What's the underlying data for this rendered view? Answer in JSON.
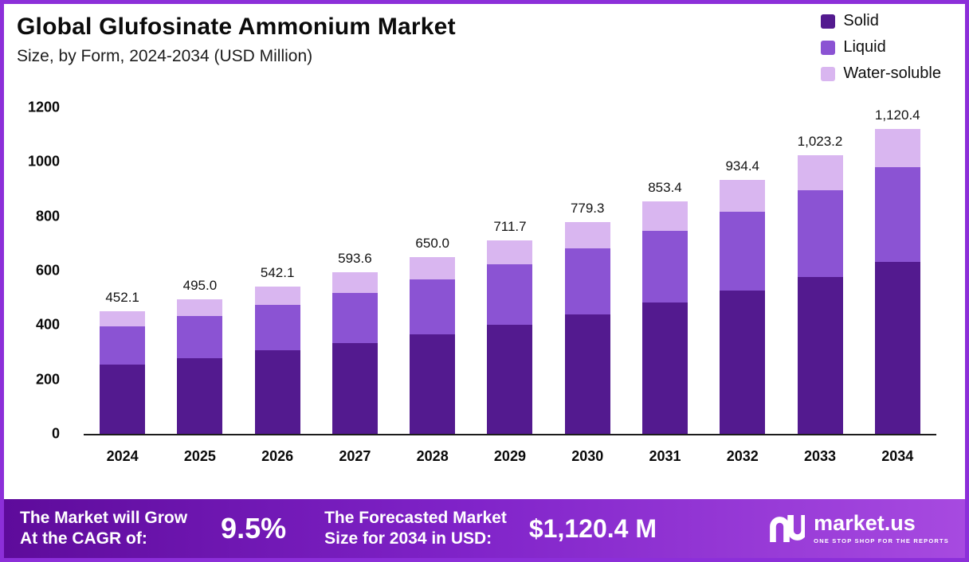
{
  "chart_data": {
    "type": "bar",
    "stacked": true,
    "title": "Global Glufosinate Ammonium Market",
    "subtitle": "Size, by Form, 2024-2034 (USD Million)",
    "categories": [
      "2024",
      "2025",
      "2026",
      "2027",
      "2028",
      "2029",
      "2030",
      "2031",
      "2032",
      "2033",
      "2034"
    ],
    "series": [
      {
        "name": "Solid",
        "color": "#531a8f",
        "values": [
          255.0,
          279.0,
          306.0,
          335.0,
          367.0,
          402.0,
          440.0,
          482.0,
          528.0,
          578.0,
          633.0
        ]
      },
      {
        "name": "Liquid",
        "color": "#8b53d3",
        "values": [
          140.0,
          153.5,
          168.0,
          184.0,
          201.5,
          220.5,
          241.5,
          264.5,
          289.5,
          317.0,
          347.0
        ]
      },
      {
        "name": "Water-soluble",
        "color": "#d9b6f0",
        "values": [
          57.1,
          62.5,
          68.1,
          74.6,
          81.5,
          89.2,
          97.8,
          106.9,
          116.9,
          128.2,
          140.4
        ]
      }
    ],
    "totals": [
      452.1,
      495.0,
      542.1,
      593.6,
      650.0,
      711.7,
      779.3,
      853.4,
      934.4,
      1023.2,
      1120.4
    ],
    "total_labels": [
      "452.1",
      "495.0",
      "542.1",
      "593.6",
      "650.0",
      "711.7",
      "779.3",
      "853.4",
      "934.4",
      "1,023.2",
      "1,120.4"
    ],
    "ylim": [
      0,
      1200
    ],
    "yticks": [
      0,
      200,
      400,
      600,
      800,
      1000,
      1200
    ],
    "xlabel": "",
    "ylabel": "",
    "grid": false,
    "legend_position": "top-right"
  },
  "footer": {
    "growth_line1": "The Market will Grow",
    "growth_line2": "At the CAGR of:",
    "cagr_value": "9.5%",
    "forecast_line1": "The Forecasted Market",
    "forecast_line2": "Size for 2034 in USD:",
    "forecast_value": "$1,120.4 M",
    "brand_name": "market.us",
    "brand_tagline": "ONE STOP SHOP FOR THE REPORTS"
  }
}
